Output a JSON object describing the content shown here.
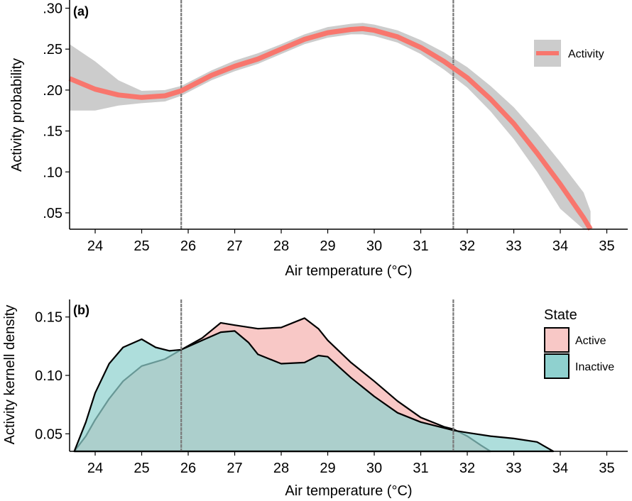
{
  "chart_data": [
    {
      "panel": "(a)",
      "type": "line",
      "xlabel": "Air temperature (°C)",
      "ylabel": "Activity probability",
      "xlim": [
        23.45,
        35.45
      ],
      "ylim": [
        0.03,
        0.31
      ],
      "xticks": [
        24,
        25,
        26,
        27,
        28,
        29,
        30,
        31,
        32,
        33,
        34,
        35
      ],
      "xtick_labels": [
        "24",
        "25",
        "26",
        "27",
        "28",
        "29",
        "30",
        "31",
        "32",
        "33",
        "34",
        "35"
      ],
      "yticks": [
        0.05,
        0.1,
        0.15,
        0.2,
        0.25,
        0.3
      ],
      "ytick_labels": [
        ".05",
        ".10",
        ".15",
        ".20",
        ".25",
        ".30"
      ],
      "vlines": [
        25.85,
        31.7
      ],
      "legend": {
        "entries": [
          "Activity"
        ],
        "position": "right",
        "color": "#f8766d",
        "ribbon_color": "#cccccc"
      },
      "series": [
        {
          "name": "Activity",
          "color": "#f8766d",
          "x": [
            23.45,
            24.0,
            24.5,
            25.0,
            25.5,
            25.85,
            26.5,
            27.0,
            27.5,
            28.0,
            28.5,
            29.0,
            29.5,
            29.75,
            30.0,
            30.5,
            31.0,
            31.5,
            32.0,
            32.5,
            33.0,
            33.5,
            34.0,
            34.5,
            34.65
          ],
          "y": [
            0.214,
            0.201,
            0.194,
            0.191,
            0.193,
            0.199,
            0.218,
            0.229,
            0.238,
            0.25,
            0.262,
            0.27,
            0.274,
            0.275,
            0.273,
            0.265,
            0.252,
            0.235,
            0.215,
            0.189,
            0.159,
            0.123,
            0.085,
            0.044,
            0.03
          ],
          "lower": [
            0.175,
            0.175,
            0.181,
            0.184,
            0.186,
            0.193,
            0.212,
            0.223,
            0.232,
            0.244,
            0.256,
            0.264,
            0.268,
            0.268,
            0.266,
            0.258,
            0.244,
            0.225,
            0.203,
            0.174,
            0.14,
            0.1,
            0.055,
            0.03,
            0.03
          ],
          "upper": [
            0.256,
            0.235,
            0.212,
            0.199,
            0.2,
            0.205,
            0.224,
            0.236,
            0.245,
            0.256,
            0.268,
            0.277,
            0.281,
            0.282,
            0.28,
            0.273,
            0.261,
            0.246,
            0.228,
            0.205,
            0.179,
            0.147,
            0.112,
            0.075,
            0.052
          ]
        }
      ]
    },
    {
      "panel": "(b)",
      "type": "area",
      "xlabel": "Air temperature (°C)",
      "ylabel": "Activity kernell density",
      "xlim": [
        23.45,
        35.45
      ],
      "ylim": [
        0.035,
        0.165
      ],
      "xticks": [
        24,
        25,
        26,
        27,
        28,
        29,
        30,
        31,
        32,
        33,
        34,
        35
      ],
      "xtick_labels": [
        "24",
        "25",
        "26",
        "27",
        "28",
        "29",
        "30",
        "31",
        "32",
        "33",
        "34",
        "35"
      ],
      "yticks": [
        0.05,
        0.1,
        0.15
      ],
      "ytick_labels": [
        "0.05",
        "0.10",
        "0.15"
      ],
      "vlines": [
        25.85,
        31.7
      ],
      "legend": {
        "title": "State",
        "entries": [
          "Active",
          "Inactive"
        ],
        "position": "right"
      },
      "series": [
        {
          "name": "Active",
          "color": "#f8c8c6",
          "x": [
            23.55,
            23.8,
            24.0,
            24.3,
            24.6,
            25.0,
            25.5,
            25.85,
            26.3,
            26.7,
            27.0,
            27.5,
            28.0,
            28.5,
            28.8,
            29.0,
            29.5,
            30.0,
            30.5,
            31.0,
            31.5,
            31.7,
            32.0,
            32.3,
            32.5
          ],
          "y": [
            0.035,
            0.048,
            0.062,
            0.08,
            0.095,
            0.108,
            0.114,
            0.122,
            0.132,
            0.145,
            0.143,
            0.14,
            0.141,
            0.149,
            0.14,
            0.13,
            0.111,
            0.095,
            0.078,
            0.064,
            0.056,
            0.054,
            0.048,
            0.04,
            0.035
          ]
        },
        {
          "name": "Inactive",
          "color": "#8fd1cf",
          "x": [
            23.55,
            23.8,
            24.0,
            24.3,
            24.6,
            25.0,
            25.3,
            25.6,
            25.85,
            26.3,
            26.7,
            27.0,
            27.3,
            27.5,
            28.0,
            28.5,
            28.8,
            29.0,
            29.5,
            30.0,
            30.5,
            31.0,
            31.5,
            31.7,
            32.0,
            32.5,
            33.0,
            33.5,
            33.85
          ],
          "y": [
            0.035,
            0.06,
            0.085,
            0.11,
            0.124,
            0.131,
            0.124,
            0.121,
            0.122,
            0.13,
            0.137,
            0.138,
            0.128,
            0.118,
            0.11,
            0.111,
            0.117,
            0.116,
            0.098,
            0.082,
            0.068,
            0.06,
            0.055,
            0.053,
            0.051,
            0.048,
            0.046,
            0.043,
            0.035
          ]
        }
      ]
    }
  ]
}
